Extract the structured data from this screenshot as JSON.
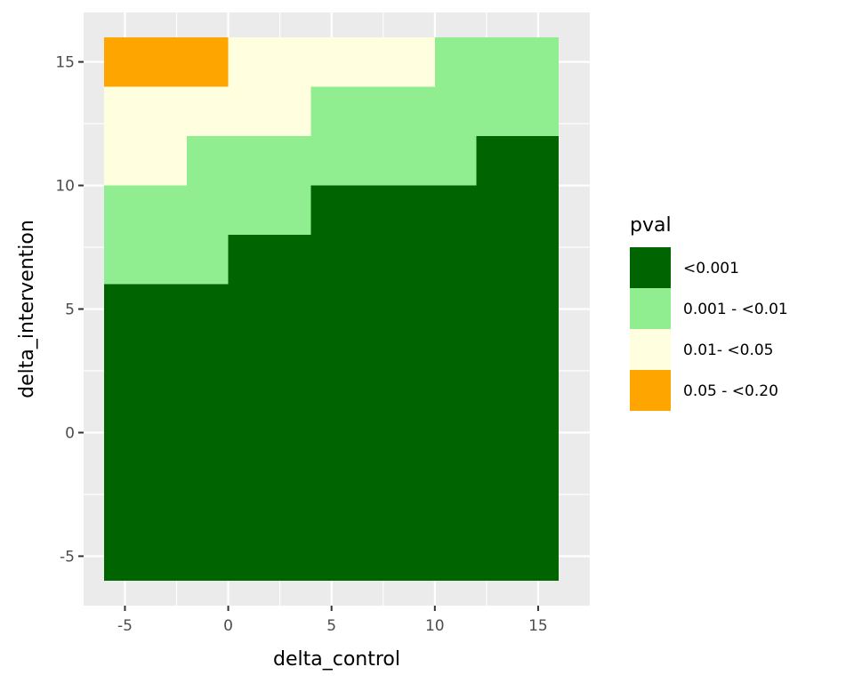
{
  "chart_data": {
    "type": "heatmap",
    "xlabel": "delta_control",
    "ylabel": "delta_intervention",
    "xlim": [
      -7,
      17.5
    ],
    "ylim": [
      -7,
      17
    ],
    "x_ticks": [
      -5,
      0,
      5,
      10,
      15
    ],
    "y_ticks": [
      -5,
      0,
      5,
      10,
      15
    ],
    "x_tick_labels": [
      "-5",
      "0",
      "5",
      "10",
      "15"
    ],
    "y_tick_labels": [
      "-5",
      "0",
      "5",
      "10",
      "15"
    ],
    "grid": true,
    "panel_background": "#ebebeb",
    "legend": {
      "title": "pval",
      "position": "right",
      "entries": [
        {
          "label": "<0.001",
          "color": "#006400"
        },
        {
          "label": "0.001 - <0.01",
          "color": "#90ee90"
        },
        {
          "label": "0.01- <0.05",
          "color": "#ffffe0"
        },
        {
          "label": "0.05 - <0.20",
          "color": "#ffa500"
        }
      ]
    },
    "regions": [
      {
        "x0": -6,
        "x1": 16,
        "y0": -6,
        "y1": 6,
        "category": 0
      },
      {
        "x0": -6,
        "x1": 0,
        "y0": 6,
        "y1": 8,
        "category": 1
      },
      {
        "x0": 0,
        "x1": 16,
        "y0": 6,
        "y1": 8,
        "category": 0
      },
      {
        "x0": -6,
        "x1": 4,
        "y0": 8,
        "y1": 10,
        "category": 1
      },
      {
        "x0": 4,
        "x1": 16,
        "y0": 8,
        "y1": 10,
        "category": 0
      },
      {
        "x0": -6,
        "x1": -2,
        "y0": 10,
        "y1": 12,
        "category": 2
      },
      {
        "x0": -2,
        "x1": 12,
        "y0": 10,
        "y1": 12,
        "category": 1
      },
      {
        "x0": 12,
        "x1": 16,
        "y0": 10,
        "y1": 12,
        "category": 0
      },
      {
        "x0": -6,
        "x1": 4,
        "y0": 12,
        "y1": 14,
        "category": 2
      },
      {
        "x0": 4,
        "x1": 16,
        "y0": 12,
        "y1": 14,
        "category": 1
      },
      {
        "x0": -6,
        "x1": 0,
        "y0": 14,
        "y1": 16,
        "category": 3
      },
      {
        "x0": 0,
        "x1": 10,
        "y0": 14,
        "y1": 16,
        "category": 2
      },
      {
        "x0": 10,
        "x1": 16,
        "y0": 14,
        "y1": 16,
        "category": 1
      }
    ]
  }
}
